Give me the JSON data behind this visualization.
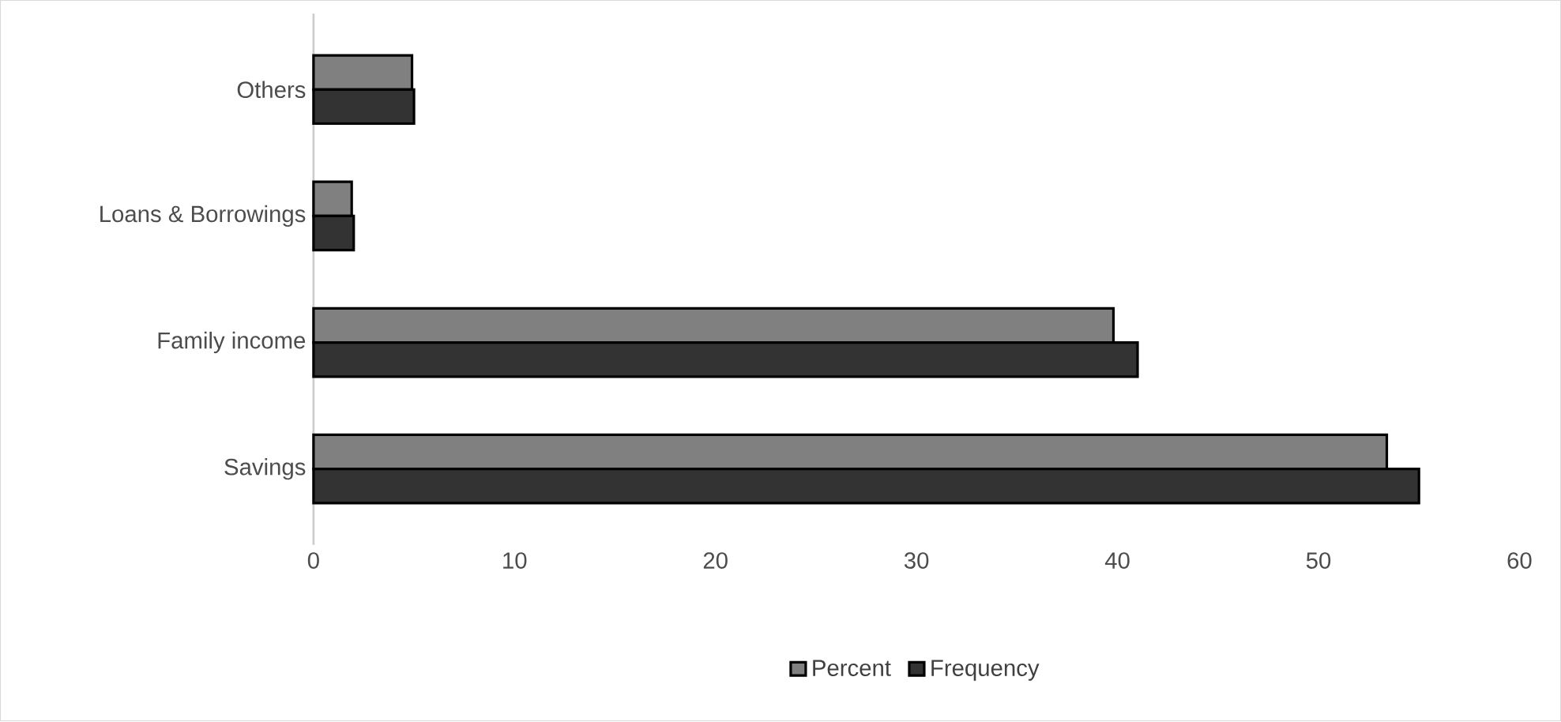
{
  "chart_data": {
    "type": "bar",
    "orientation": "horizontal",
    "categories": [
      "Others",
      "Loans & Borrowings",
      "Family income",
      "Savings"
    ],
    "series": [
      {
        "name": "Percent",
        "color": "#808080",
        "values": [
          4.9,
          1.9,
          39.8,
          53.4
        ]
      },
      {
        "name": "Frequency",
        "color": "#333333",
        "values": [
          5,
          2,
          41,
          55
        ]
      }
    ],
    "xlim": [
      0,
      60
    ],
    "xticks": [
      0,
      10,
      20,
      30,
      40,
      50,
      60
    ],
    "legend": "bottom"
  }
}
